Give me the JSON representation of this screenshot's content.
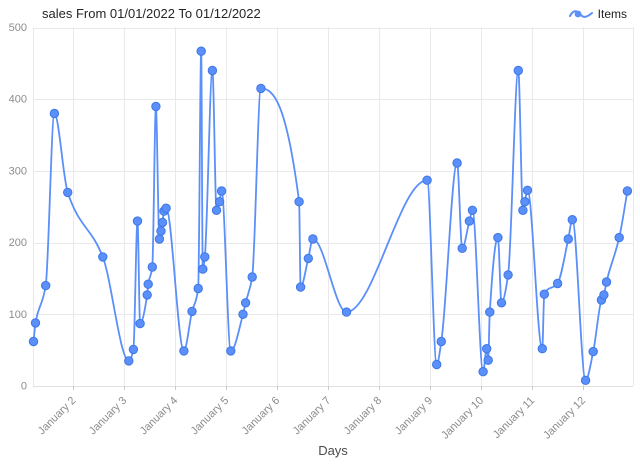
{
  "chart_data": {
    "type": "line",
    "title": "sales From 01/01/2022 To 01/12/2022",
    "series_name": "Items",
    "xlabel": "Days",
    "ylabel": "",
    "ylim": [
      0,
      500
    ],
    "y_ticks": [
      0,
      100,
      200,
      300,
      400,
      500
    ],
    "x_domain_days": [
      0.21,
      11.98
    ],
    "x_ticks": [
      {
        "day": 1,
        "label": "January 2"
      },
      {
        "day": 2,
        "label": "January 3"
      },
      {
        "day": 3,
        "label": "January 4"
      },
      {
        "day": 4,
        "label": "January 5"
      },
      {
        "day": 5,
        "label": "January 6"
      },
      {
        "day": 6,
        "label": "January 7"
      },
      {
        "day": 7,
        "label": "January 8"
      },
      {
        "day": 8,
        "label": "January 9"
      },
      {
        "day": 9,
        "label": "January 10"
      },
      {
        "day": 10,
        "label": "January 11"
      },
      {
        "day": 11,
        "label": "January 12"
      }
    ],
    "grid": true,
    "legend_position": "top-right",
    "line_color": "#5B8FF9",
    "point_color": "#5B8FF9",
    "point_stroke_color": "#3D77E6",
    "points": [
      [
        0.22,
        62
      ],
      [
        0.26,
        88
      ],
      [
        0.46,
        140
      ],
      [
        0.63,
        380
      ],
      [
        0.89,
        270
      ],
      [
        1.58,
        180
      ],
      [
        2.09,
        35
      ],
      [
        2.18,
        51
      ],
      [
        2.26,
        230
      ],
      [
        2.31,
        87
      ],
      [
        2.45,
        127
      ],
      [
        2.47,
        142
      ],
      [
        2.55,
        166
      ],
      [
        2.62,
        390
      ],
      [
        2.69,
        205
      ],
      [
        2.72,
        216
      ],
      [
        2.75,
        228
      ],
      [
        2.78,
        244
      ],
      [
        2.82,
        248
      ],
      [
        3.17,
        49
      ],
      [
        3.33,
        104
      ],
      [
        3.45,
        136
      ],
      [
        3.51,
        467
      ],
      [
        3.54,
        163
      ],
      [
        3.58,
        180
      ],
      [
        3.73,
        440
      ],
      [
        3.81,
        245
      ],
      [
        3.87,
        257
      ],
      [
        3.91,
        272
      ],
      [
        4.09,
        49
      ],
      [
        4.33,
        100
      ],
      [
        4.38,
        116
      ],
      [
        4.51,
        152
      ],
      [
        4.68,
        415
      ],
      [
        5.43,
        257
      ],
      [
        5.46,
        138
      ],
      [
        5.61,
        178
      ],
      [
        5.7,
        205
      ],
      [
        6.36,
        103
      ],
      [
        7.94,
        287
      ],
      [
        8.13,
        30
      ],
      [
        8.22,
        62
      ],
      [
        8.53,
        311
      ],
      [
        8.63,
        192
      ],
      [
        8.77,
        230
      ],
      [
        8.83,
        245
      ],
      [
        9.04,
        20
      ],
      [
        9.11,
        52
      ],
      [
        9.14,
        36
      ],
      [
        9.17,
        103
      ],
      [
        9.33,
        207
      ],
      [
        9.4,
        116
      ],
      [
        9.53,
        155
      ],
      [
        9.73,
        440
      ],
      [
        9.82,
        245
      ],
      [
        9.86,
        257
      ],
      [
        9.91,
        273
      ],
      [
        10.2,
        52
      ],
      [
        10.24,
        128
      ],
      [
        10.5,
        143
      ],
      [
        10.71,
        205
      ],
      [
        10.79,
        232
      ],
      [
        11.05,
        8
      ],
      [
        11.2,
        48
      ],
      [
        11.36,
        120
      ],
      [
        11.41,
        127
      ],
      [
        11.46,
        145
      ],
      [
        11.71,
        207
      ],
      [
        11.87,
        272
      ]
    ]
  }
}
